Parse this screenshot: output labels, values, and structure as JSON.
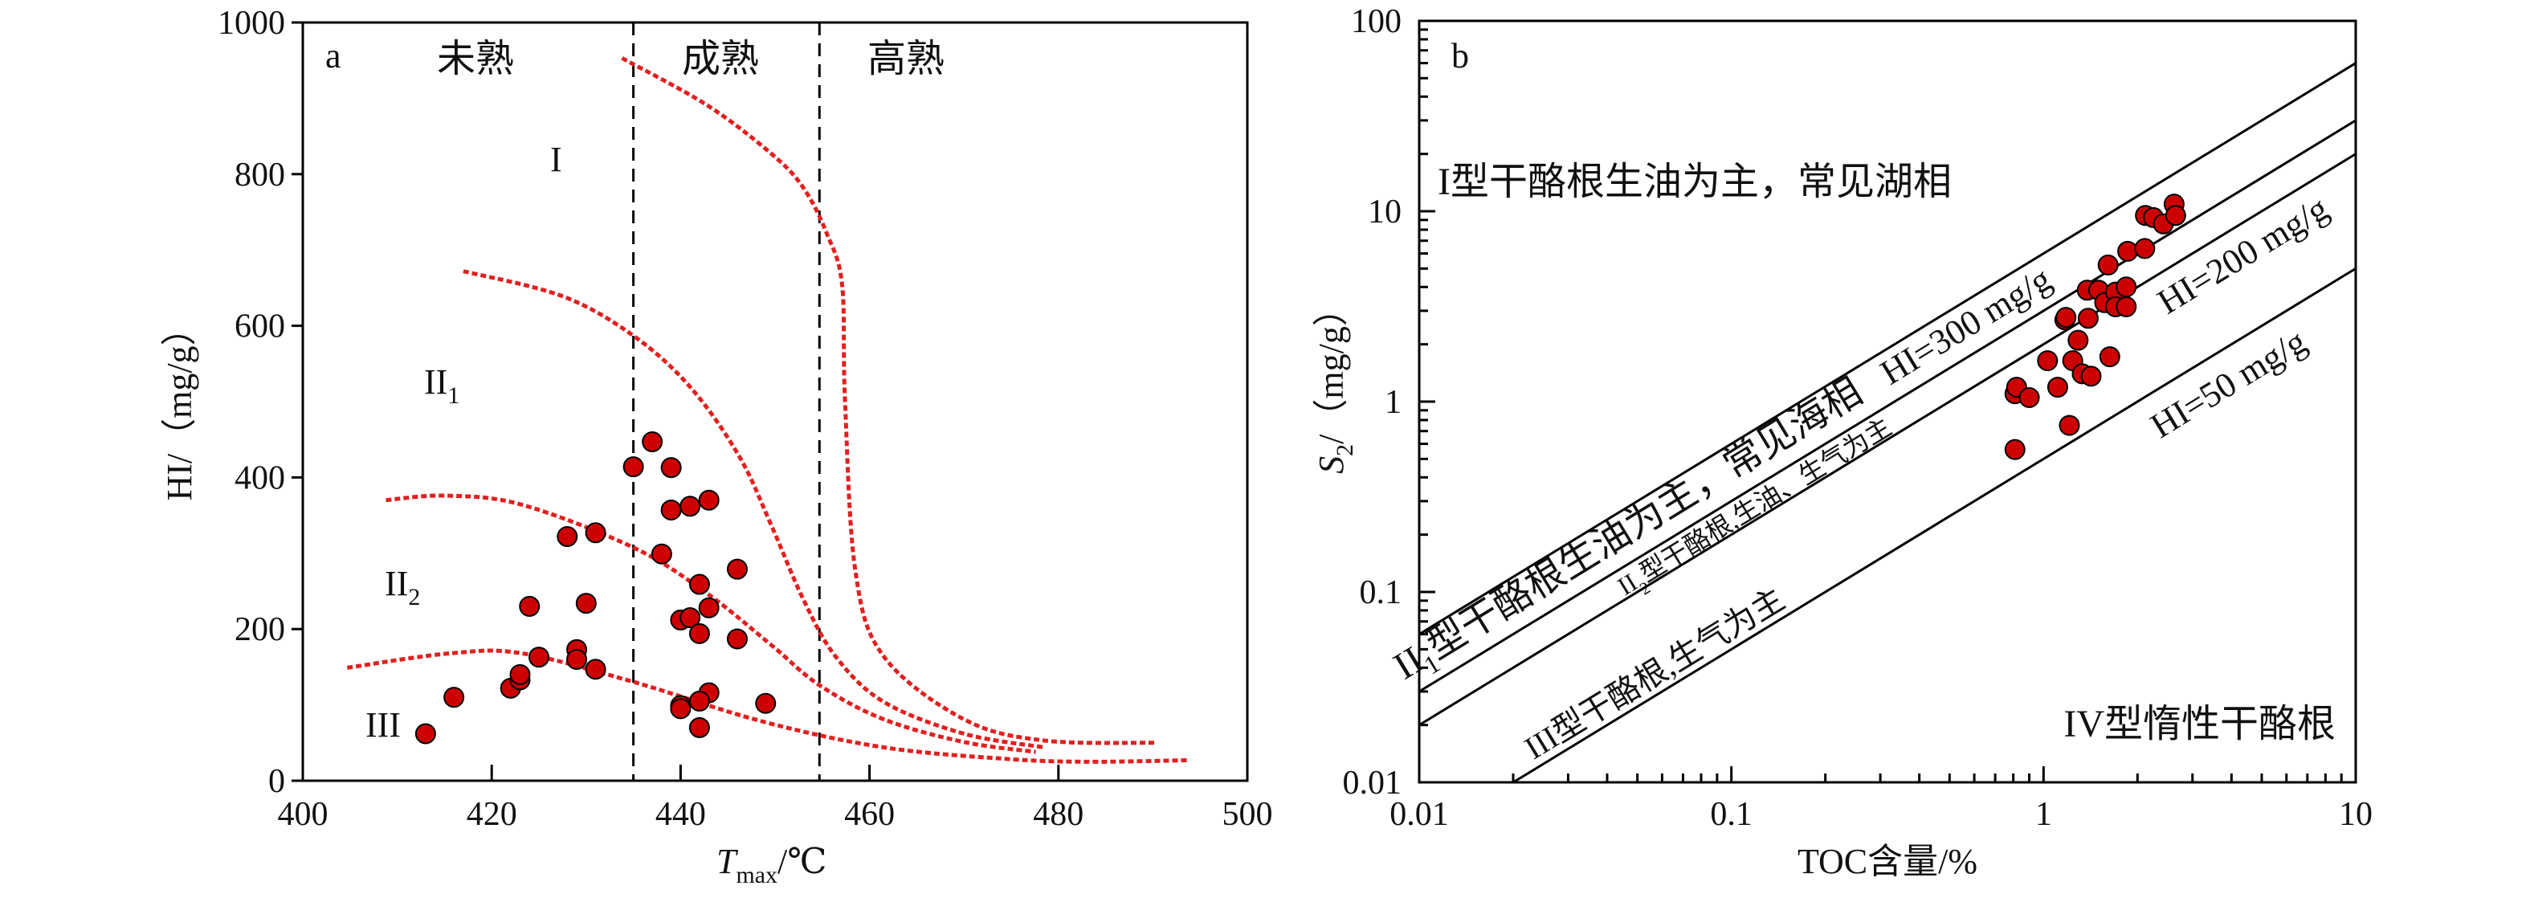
{
  "chart_data": [
    {
      "type": "scatter",
      "panel_label": "a",
      "xlabel": {
        "main": "T",
        "sub": "max",
        "rest": "/℃"
      },
      "ylabel": "HI/（mg/g）",
      "xlim": [
        400,
        500
      ],
      "ylim": [
        0,
        1000
      ],
      "xticks": [
        400,
        420,
        440,
        460,
        480,
        500
      ],
      "yticks": [
        0,
        200,
        400,
        600,
        800,
        1000
      ],
      "zones": [
        {
          "label": "未熟"
        },
        {
          "label": "成熟"
        },
        {
          "label": "高熟"
        }
      ],
      "zone_boundaries": [
        435,
        454.7
      ],
      "type_labels": [
        {
          "main": "I",
          "sub": ""
        },
        {
          "main": "II",
          "sub": "1"
        },
        {
          "main": "II",
          "sub": "2"
        },
        {
          "main": "III",
          "sub": ""
        }
      ],
      "curves": [
        {
          "type": "I",
          "points": [
            [
              433.8,
              953
            ],
            [
              442.8,
              891
            ],
            [
              449.6,
              827
            ],
            [
              453,
              782
            ],
            [
              455.5,
              721
            ],
            [
              457.1,
              654
            ],
            [
              457.4,
              503
            ],
            [
              458.5,
              277
            ],
            [
              461.5,
              164
            ],
            [
              470,
              81
            ],
            [
              478.5,
              53
            ],
            [
              490.4,
              50
            ]
          ]
        },
        {
          "type": "II1",
          "points": [
            [
              417,
              672
            ],
            [
              427.5,
              639
            ],
            [
              435.1,
              586
            ],
            [
              441.1,
              518
            ],
            [
              446.2,
              428
            ],
            [
              449.6,
              337
            ],
            [
              453,
              239
            ],
            [
              456.4,
              164
            ],
            [
              461.5,
              104
            ],
            [
              470,
              62
            ],
            [
              478.5,
              44
            ]
          ]
        },
        {
          "type": "II2",
          "points": [
            [
              408.8,
              370
            ],
            [
              415.1,
              376
            ],
            [
              423.2,
              364
            ],
            [
              435.1,
              307
            ],
            [
              442.8,
              247
            ],
            [
              449.6,
              179
            ],
            [
              454.7,
              126
            ],
            [
              461.5,
              81
            ],
            [
              470,
              51
            ],
            [
              477.6,
              38
            ]
          ]
        },
        {
          "type": "III",
          "points": [
            [
              404.7,
              149
            ],
            [
              415.6,
              168
            ],
            [
              423.2,
              168
            ],
            [
              435.1,
              130
            ],
            [
              448.7,
              78
            ],
            [
              461.5,
              44
            ],
            [
              474.2,
              29
            ],
            [
              482.7,
              25
            ],
            [
              493.8,
              27
            ]
          ]
        }
      ],
      "points": [
        [
          413,
          62
        ],
        [
          416,
          110
        ],
        [
          422,
          122
        ],
        [
          423,
          133
        ],
        [
          423,
          140
        ],
        [
          425,
          163
        ],
        [
          424,
          230
        ],
        [
          428,
          322
        ],
        [
          431,
          327
        ],
        [
          430,
          234
        ],
        [
          429,
          173
        ],
        [
          429,
          160
        ],
        [
          431,
          147
        ],
        [
          435,
          414
        ],
        [
          437,
          447
        ],
        [
          439,
          413
        ],
        [
          439,
          357
        ],
        [
          441,
          362
        ],
        [
          443,
          370
        ],
        [
          438,
          299
        ],
        [
          442,
          259
        ],
        [
          446,
          279
        ],
        [
          443,
          228
        ],
        [
          440,
          212
        ],
        [
          441,
          215
        ],
        [
          442,
          194
        ],
        [
          446,
          187
        ],
        [
          443,
          116
        ],
        [
          442,
          105
        ],
        [
          440,
          99
        ],
        [
          440,
          95
        ],
        [
          442,
          70
        ],
        [
          449,
          102
        ]
      ],
      "point_color": "#cc0000",
      "curve_color": "#e02020",
      "grid": false
    },
    {
      "type": "scatter",
      "panel_label": "b",
      "xscale": "log",
      "yscale": "log",
      "xlabel": "TOC含量/%",
      "ylabel": {
        "main": "S",
        "sub": "2",
        "rest": "/（mg/g）"
      },
      "xlim": [
        0.01,
        10
      ],
      "ylim": [
        0.01,
        100
      ],
      "xticks": [
        "0.01",
        "0.1",
        "1",
        "10"
      ],
      "yticks": [
        "0.01",
        "0.1",
        "1",
        "10",
        "100"
      ],
      "hi_lines": [
        600,
        300,
        200,
        50
      ],
      "line_labels": [
        "HI=300 mg/g",
        "HI=200 mg/g",
        "HI=50 mg/g"
      ],
      "region_labels": {
        "type1": "I型干酪根生油为主，常见湖相",
        "type2_1": {
          "main": "II",
          "sub": "1",
          "rest": "型干酪根生油为主，常见海相"
        },
        "type2_2": {
          "main": "II",
          "sub": "2",
          "rest": "型干酪根,生油、生气为主"
        },
        "type3": "III型干酪根,生气为主",
        "type4": "IV型惰性干酪根"
      },
      "points": [
        [
          0.81,
          0.56
        ],
        [
          0.81,
          1.1
        ],
        [
          0.82,
          1.19
        ],
        [
          0.9,
          1.05
        ],
        [
          1.03,
          1.64
        ],
        [
          1.11,
          1.19
        ],
        [
          1.21,
          0.75
        ],
        [
          1.17,
          2.69
        ],
        [
          1.18,
          2.77
        ],
        [
          1.24,
          1.64
        ],
        [
          1.29,
          2.1
        ],
        [
          1.33,
          1.4
        ],
        [
          1.42,
          1.36
        ],
        [
          1.39,
          2.74
        ],
        [
          1.38,
          3.85
        ],
        [
          1.5,
          3.85
        ],
        [
          1.57,
          3.31
        ],
        [
          1.63,
          1.72
        ],
        [
          1.61,
          5.22
        ],
        [
          1.7,
          3.76
        ],
        [
          1.7,
          3.15
        ],
        [
          1.84,
          3.15
        ],
        [
          1.84,
          4.0
        ],
        [
          1.86,
          6.16
        ],
        [
          2.11,
          6.37
        ],
        [
          2.12,
          9.5
        ],
        [
          2.25,
          9.26
        ],
        [
          2.42,
          8.58
        ],
        [
          2.62,
          10.9
        ],
        [
          2.65,
          9.5
        ]
      ],
      "point_color": "#cc0000",
      "grid": false
    }
  ]
}
